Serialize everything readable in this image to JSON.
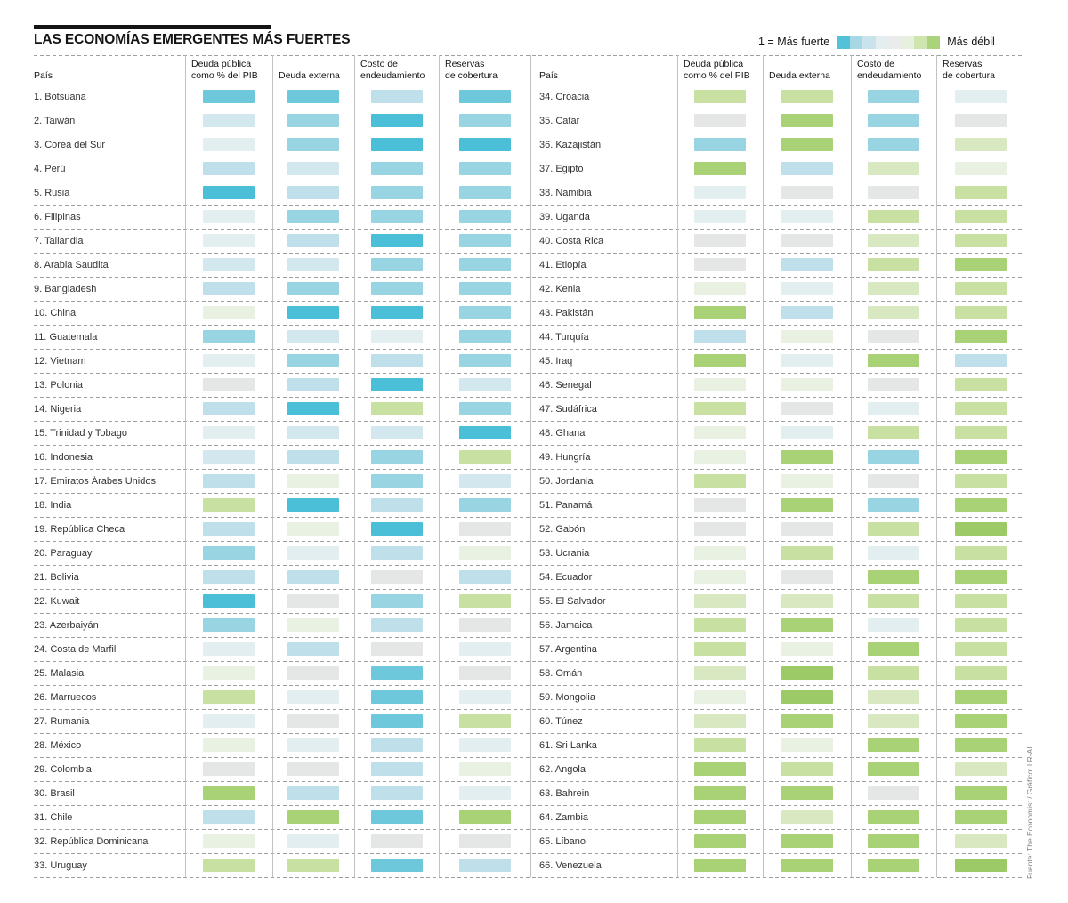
{
  "title": "LAS ECONOMÍAS EMERGENTES MÁS FUERTES",
  "legend": {
    "strong_label": "1 = Más fuerte",
    "weak_label": "Más débil",
    "scale": [
      "#53c1d8",
      "#a5d8e4",
      "#c8e3ec",
      "#e4edf0",
      "#eaeceb",
      "#e7f0df",
      "#cfe5ae",
      "#abd37b"
    ]
  },
  "column_headers": {
    "country": "País",
    "metrics": [
      [
        "Deuda pública",
        "como % del PIB"
      ],
      [
        "Deuda externa"
      ],
      [
        "Costo de",
        "endeudamiento"
      ],
      [
        "Reservas",
        "de cobertura"
      ]
    ]
  },
  "source": "Fuente: The Economist / Gráfico: LR-AL",
  "palette": {
    "note": "Color bins from strongest (0, teal) to weakest (11, green); neutral mid-scale greys around index 6.",
    "colors": [
      "#4bbfd7",
      "#6ec8dc",
      "#99d4e3",
      "#bfdfeb",
      "#d3e7ee",
      "#e3eef1",
      "#e4e7e5",
      "#e9f1e2",
      "#d8e9c2",
      "#c8e1a2",
      "#a9d175",
      "#9bca66"
    ]
  },
  "chart_data": {
    "type": "heatmap",
    "title": "LAS ECONOMÍAS EMERGENTES MÁS FUERTES",
    "legend": "1 = Más fuerte (teal) … Más débil (green)",
    "columns": [
      "Deuda pública como % del PIB",
      "Deuda externa",
      "Costo de endeudamiento",
      "Reservas de cobertura"
    ],
    "scale_note": "values are color-bin indices 0–11 into palette.colors (0 = más fuerte, 11 = más débil), estimated from each cell's color",
    "rows": [
      {
        "rank": 1,
        "country": "Botsuana",
        "values": [
          1,
          1,
          3,
          1
        ]
      },
      {
        "rank": 2,
        "country": "Taiwán",
        "values": [
          4,
          2,
          0,
          2
        ]
      },
      {
        "rank": 3,
        "country": "Corea del Sur",
        "values": [
          5,
          2,
          0,
          0
        ]
      },
      {
        "rank": 4,
        "country": "Perú",
        "values": [
          3,
          4,
          2,
          2
        ]
      },
      {
        "rank": 5,
        "country": "Rusia",
        "values": [
          0,
          3,
          2,
          2
        ]
      },
      {
        "rank": 6,
        "country": "Filipinas",
        "values": [
          5,
          2,
          2,
          2
        ]
      },
      {
        "rank": 7,
        "country": "Tailandia",
        "values": [
          5,
          3,
          0,
          2
        ]
      },
      {
        "rank": 8,
        "country": "Arabia Saudita",
        "values": [
          4,
          4,
          2,
          2
        ]
      },
      {
        "rank": 9,
        "country": "Bangladesh",
        "values": [
          3,
          2,
          2,
          2
        ]
      },
      {
        "rank": 10,
        "country": "China",
        "values": [
          7,
          0,
          0,
          2
        ]
      },
      {
        "rank": 11,
        "country": "Guatemala",
        "values": [
          2,
          4,
          5,
          2
        ]
      },
      {
        "rank": 12,
        "country": "Vietnam",
        "values": [
          5,
          2,
          3,
          2
        ]
      },
      {
        "rank": 13,
        "country": "Polonia",
        "values": [
          6,
          3,
          0,
          4
        ]
      },
      {
        "rank": 14,
        "country": "Nigeria",
        "values": [
          3,
          0,
          9,
          2
        ]
      },
      {
        "rank": 15,
        "country": "Trinidad y Tobago",
        "values": [
          5,
          4,
          4,
          0
        ]
      },
      {
        "rank": 16,
        "country": "Indonesia",
        "values": [
          4,
          3,
          2,
          9
        ]
      },
      {
        "rank": 17,
        "country": "Emiratos Árabes Unidos",
        "values": [
          3,
          7,
          2,
          4
        ]
      },
      {
        "rank": 18,
        "country": "India",
        "values": [
          9,
          0,
          3,
          2
        ]
      },
      {
        "rank": 19,
        "country": "República Checa",
        "values": [
          3,
          7,
          0,
          6
        ]
      },
      {
        "rank": 20,
        "country": "Paraguay",
        "values": [
          2,
          5,
          3,
          7
        ]
      },
      {
        "rank": 21,
        "country": "Bolivia",
        "values": [
          3,
          3,
          6,
          3
        ]
      },
      {
        "rank": 22,
        "country": "Kuwait",
        "values": [
          0,
          6,
          2,
          9
        ]
      },
      {
        "rank": 23,
        "country": "Azerbaiyán",
        "values": [
          2,
          7,
          3,
          6
        ]
      },
      {
        "rank": 24,
        "country": "Costa de Marfil",
        "values": [
          5,
          3,
          6,
          5
        ]
      },
      {
        "rank": 25,
        "country": "Malasia",
        "values": [
          7,
          6,
          1,
          6
        ]
      },
      {
        "rank": 26,
        "country": "Marruecos",
        "values": [
          9,
          5,
          1,
          5
        ]
      },
      {
        "rank": 27,
        "country": "Rumania",
        "values": [
          5,
          6,
          1,
          9
        ]
      },
      {
        "rank": 28,
        "country": "México",
        "values": [
          7,
          5,
          3,
          5
        ]
      },
      {
        "rank": 29,
        "country": "Colombia",
        "values": [
          6,
          6,
          3,
          7
        ]
      },
      {
        "rank": 30,
        "country": "Brasil",
        "values": [
          10,
          3,
          3,
          5
        ]
      },
      {
        "rank": 31,
        "country": "Chile",
        "values": [
          3,
          10,
          1,
          10
        ]
      },
      {
        "rank": 32,
        "country": "República Dominicana",
        "values": [
          7,
          5,
          6,
          6
        ]
      },
      {
        "rank": 33,
        "country": "Uruguay",
        "values": [
          9,
          9,
          1,
          3
        ]
      },
      {
        "rank": 34,
        "country": "Croacia",
        "values": [
          9,
          9,
          2,
          5
        ]
      },
      {
        "rank": 35,
        "country": "Catar",
        "values": [
          6,
          10,
          2,
          6
        ]
      },
      {
        "rank": 36,
        "country": "Kazajistán",
        "values": [
          2,
          10,
          2,
          8
        ]
      },
      {
        "rank": 37,
        "country": "Egipto",
        "values": [
          10,
          3,
          8,
          7
        ]
      },
      {
        "rank": 38,
        "country": "Namibia",
        "values": [
          5,
          6,
          6,
          9
        ]
      },
      {
        "rank": 39,
        "country": "Uganda",
        "values": [
          5,
          5,
          9,
          9
        ]
      },
      {
        "rank": 40,
        "country": "Costa Rica",
        "values": [
          6,
          6,
          8,
          9
        ]
      },
      {
        "rank": 41,
        "country": "Etiopía",
        "values": [
          6,
          3,
          9,
          10
        ]
      },
      {
        "rank": 42,
        "country": "Kenia",
        "values": [
          7,
          5,
          8,
          9
        ]
      },
      {
        "rank": 43,
        "country": "Pakistán",
        "values": [
          10,
          3,
          8,
          9
        ]
      },
      {
        "rank": 44,
        "country": "Turquía",
        "values": [
          3,
          7,
          6,
          10
        ]
      },
      {
        "rank": 45,
        "country": "Iraq",
        "values": [
          10,
          5,
          10,
          3
        ]
      },
      {
        "rank": 46,
        "country": "Senegal",
        "values": [
          7,
          7,
          6,
          9
        ]
      },
      {
        "rank": 47,
        "country": "Sudáfrica",
        "values": [
          9,
          6,
          5,
          9
        ]
      },
      {
        "rank": 48,
        "country": "Ghana",
        "values": [
          7,
          5,
          9,
          9
        ]
      },
      {
        "rank": 49,
        "country": "Hungría",
        "values": [
          7,
          10,
          2,
          10
        ]
      },
      {
        "rank": 50,
        "country": "Jordania",
        "values": [
          9,
          7,
          6,
          9
        ]
      },
      {
        "rank": 51,
        "country": "Panamá",
        "values": [
          6,
          10,
          2,
          10
        ]
      },
      {
        "rank": 52,
        "country": "Gabón",
        "values": [
          6,
          6,
          9,
          11
        ]
      },
      {
        "rank": 53,
        "country": "Ucrania",
        "values": [
          7,
          9,
          5,
          9
        ]
      },
      {
        "rank": 54,
        "country": "Ecuador",
        "values": [
          7,
          6,
          10,
          10
        ]
      },
      {
        "rank": 55,
        "country": "El Salvador",
        "values": [
          8,
          8,
          9,
          9
        ]
      },
      {
        "rank": 56,
        "country": "Jamaica",
        "values": [
          9,
          10,
          5,
          9
        ]
      },
      {
        "rank": 57,
        "country": "Argentina",
        "values": [
          9,
          7,
          10,
          9
        ]
      },
      {
        "rank": 58,
        "country": "Omán",
        "values": [
          8,
          11,
          9,
          9
        ]
      },
      {
        "rank": 59,
        "country": "Mongolia",
        "values": [
          7,
          11,
          8,
          10
        ]
      },
      {
        "rank": 60,
        "country": "Túnez",
        "values": [
          8,
          10,
          8,
          10
        ]
      },
      {
        "rank": 61,
        "country": "Sri Lanka",
        "values": [
          9,
          7,
          10,
          10
        ]
      },
      {
        "rank": 62,
        "country": "Angola",
        "values": [
          10,
          9,
          10,
          8
        ]
      },
      {
        "rank": 63,
        "country": "Bahrein",
        "values": [
          10,
          10,
          6,
          10
        ]
      },
      {
        "rank": 64,
        "country": "Zambia",
        "values": [
          10,
          8,
          10,
          10
        ]
      },
      {
        "rank": 65,
        "country": "Líbano",
        "values": [
          10,
          10,
          10,
          8
        ]
      },
      {
        "rank": 66,
        "country": "Venezuela",
        "values": [
          10,
          10,
          10,
          11
        ]
      }
    ]
  }
}
